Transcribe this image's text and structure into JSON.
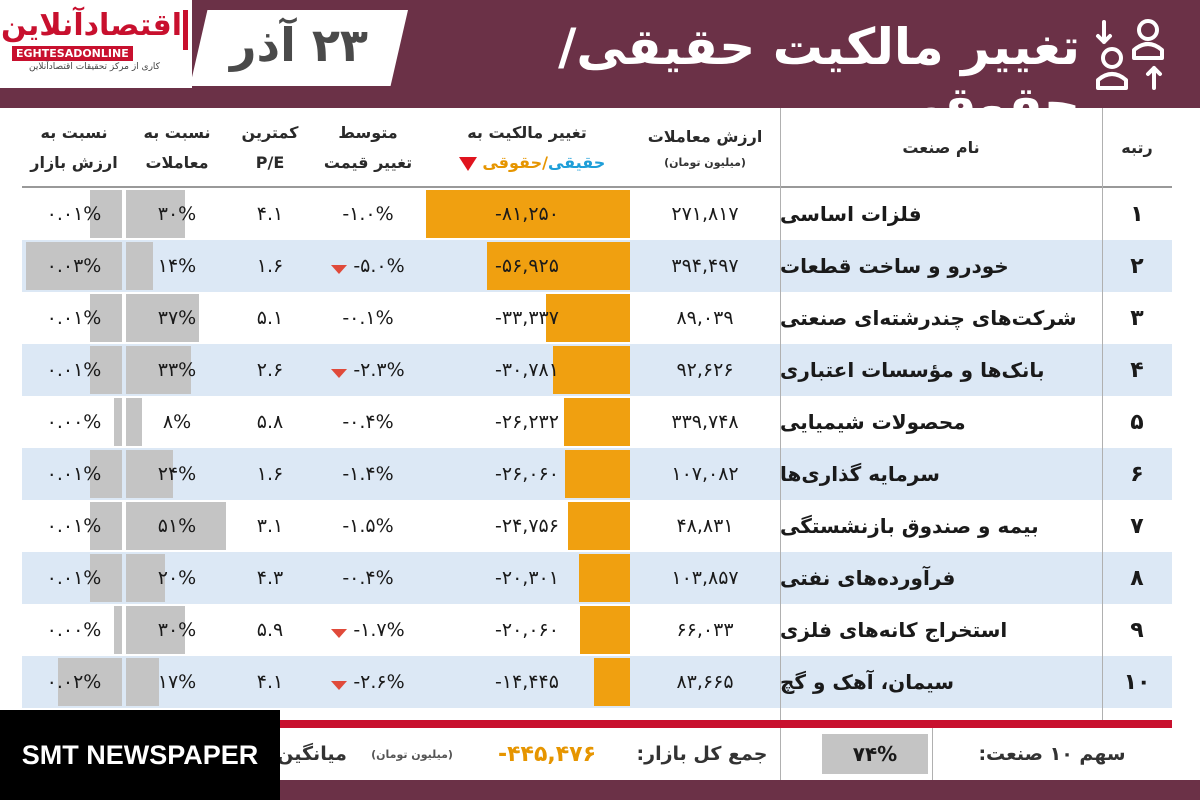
{
  "header": {
    "title": "تغییر مالکیت حقیقی/حقوقی",
    "date": "۲۳ آذر",
    "logo": {
      "name": "اقتصادآنلاین",
      "latin": "EGHTESADONLINE",
      "tagline": "کاری از مرکز تحقیقات اقتصادآنلاین"
    },
    "icon": "person-transfer-icon"
  },
  "columns": {
    "rank": "رتبه",
    "industry": "نام صنعت",
    "trade_value": "ارزش معاملات",
    "trade_value_unit": "(میلیون تومان)",
    "ownership_change_line1": "تغییر مالکیت به",
    "ownership_change_real": "حقیقی",
    "ownership_change_sep": "/",
    "ownership_change_legal": "حقوقی",
    "avg_price_change_line1": "متوسط",
    "avg_price_change_line2": "تغییر قیمت",
    "min_pe_line1": "کمترین",
    "min_pe_line2": "P/E",
    "ratio_trades_line1": "نسبت به",
    "ratio_trades_line2": "معاملات",
    "ratio_market_line1": "نسبت به",
    "ratio_market_line2": "ارزش بازار"
  },
  "colors": {
    "header_bg": "#6b3147",
    "accent_red": "#c8102e",
    "orange_bar": "#f0a010",
    "grey_bar": "#c4c4c4",
    "alt_row": "#dce8f5",
    "real_blue": "#1e9ed8",
    "legal_orange": "#e69500"
  },
  "rows": [
    {
      "rank": "۱",
      "name": "فلزات اساسی",
      "trade_value": "۲۷۱,۸۱۷",
      "ownership_change": "-۸۱,۲۵۰",
      "ownership_change_num": -81250,
      "price_change": "-۱.۰%",
      "price_down": false,
      "min_pe": "۴.۱",
      "ratio_trades": "۳۰%",
      "ratio_trades_num": 30,
      "ratio_market": "۰.۰۱%",
      "ratio_market_num": 0.01
    },
    {
      "rank": "۲",
      "name": "خودرو و ساخت قطعات",
      "trade_value": "۳۹۴,۴۹۷",
      "ownership_change": "-۵۶,۹۲۵",
      "ownership_change_num": -56925,
      "price_change": "-۵.۰%",
      "price_down": true,
      "min_pe": "۱.۶",
      "ratio_trades": "۱۴%",
      "ratio_trades_num": 14,
      "ratio_market": "۰.۰۳%",
      "ratio_market_num": 0.03
    },
    {
      "rank": "۳",
      "name": "شرکت‌های چندرشته‌ای صنعتی",
      "trade_value": "۸۹,۰۳۹",
      "ownership_change": "-۳۳,۳۳۷",
      "ownership_change_num": -33337,
      "price_change": "-۰.۱%",
      "price_down": false,
      "min_pe": "۵.۱",
      "ratio_trades": "۳۷%",
      "ratio_trades_num": 37,
      "ratio_market": "۰.۰۱%",
      "ratio_market_num": 0.01
    },
    {
      "rank": "۴",
      "name": "بانک‌ها و مؤسسات اعتباری",
      "trade_value": "۹۲,۶۲۶",
      "ownership_change": "-۳۰,۷۸۱",
      "ownership_change_num": -30781,
      "price_change": "-۲.۳%",
      "price_down": true,
      "min_pe": "۲.۶",
      "ratio_trades": "۳۳%",
      "ratio_trades_num": 33,
      "ratio_market": "۰.۰۱%",
      "ratio_market_num": 0.01
    },
    {
      "rank": "۵",
      "name": "محصولات شیمیایی",
      "trade_value": "۳۳۹,۷۴۸",
      "ownership_change": "-۲۶,۲۳۲",
      "ownership_change_num": -26232,
      "price_change": "-۰.۴%",
      "price_down": false,
      "min_pe": "۵.۸",
      "ratio_trades": "۸%",
      "ratio_trades_num": 8,
      "ratio_market": "۰.۰۰%",
      "ratio_market_num": 0.0
    },
    {
      "rank": "۶",
      "name": "سرمایه گذاری‌ها",
      "trade_value": "۱۰۷,۰۸۲",
      "ownership_change": "-۲۶,۰۶۰",
      "ownership_change_num": -26060,
      "price_change": "-۱.۴%",
      "price_down": false,
      "min_pe": "۱.۶",
      "ratio_trades": "۲۴%",
      "ratio_trades_num": 24,
      "ratio_market": "۰.۰۱%",
      "ratio_market_num": 0.01
    },
    {
      "rank": "۷",
      "name": "بیمه و صندوق بازنشستگی",
      "trade_value": "۴۸,۸۳۱",
      "ownership_change": "-۲۴,۷۵۶",
      "ownership_change_num": -24756,
      "price_change": "-۱.۵%",
      "price_down": false,
      "min_pe": "۳.۱",
      "ratio_trades": "۵۱%",
      "ratio_trades_num": 51,
      "ratio_market": "۰.۰۱%",
      "ratio_market_num": 0.01
    },
    {
      "rank": "۸",
      "name": "فرآورده‌های نفتی",
      "trade_value": "۱۰۳,۸۵۷",
      "ownership_change": "-۲۰,۳۰۱",
      "ownership_change_num": -20301,
      "price_change": "-۰.۴%",
      "price_down": false,
      "min_pe": "۴.۳",
      "ratio_trades": "۲۰%",
      "ratio_trades_num": 20,
      "ratio_market": "۰.۰۱%",
      "ratio_market_num": 0.01
    },
    {
      "rank": "۹",
      "name": "استخراج کانه‌های فلزی",
      "trade_value": "۶۶,۰۳۳",
      "ownership_change": "-۲۰,۰۶۰",
      "ownership_change_num": -20060,
      "price_change": "-۱.۷%",
      "price_down": true,
      "min_pe": "۵.۹",
      "ratio_trades": "۳۰%",
      "ratio_trades_num": 30,
      "ratio_market": "۰.۰۰%",
      "ratio_market_num": 0.0
    },
    {
      "rank": "۱۰",
      "name": "سیمان، آهک و گچ",
      "trade_value": "۸۳,۶۶۵",
      "ownership_change": "-۱۴,۴۴۵",
      "ownership_change_num": -14445,
      "price_change": "-۲.۶%",
      "price_down": true,
      "min_pe": "۴.۱",
      "ratio_trades": "۱۷%",
      "ratio_trades_num": 17,
      "ratio_market": "۰.۰۲%",
      "ratio_market_num": 0.02
    }
  ],
  "footer": {
    "share_label": "سهم ۱۰ صنعت:",
    "share_value": "۷۴%",
    "total_label": "جمع کل بازار:",
    "total_value": "-۴۴۵,۴۷۶",
    "total_unit": "(میلیون تومان)",
    "avg_label": "میانگین"
  },
  "watermark": "SMT NEWSPAPER"
}
